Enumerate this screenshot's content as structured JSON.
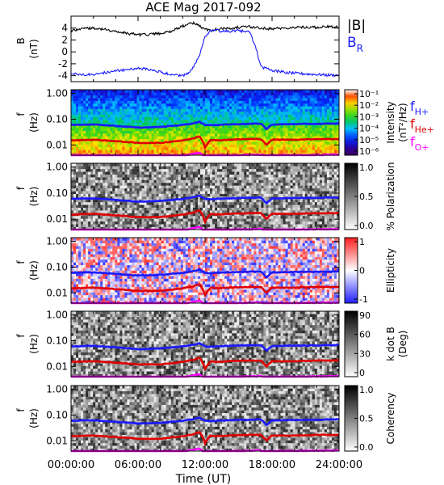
{
  "title": "ACE Mag 2017-092",
  "x_axis": {
    "label": "Time (UT)",
    "tick_labels": [
      "00:00:00",
      "06:00:00",
      "12:00:00",
      "18:00:00",
      "24:00:00"
    ],
    "range_hours": [
      0,
      24
    ]
  },
  "colors": {
    "black": "#000000",
    "blue": "#1a1aff",
    "red": "#e00000",
    "magenta": "#ff00ff"
  },
  "chart_data": [
    {
      "type": "line",
      "panel": "B-field",
      "ylabel": "B",
      "yunit": "(nT)",
      "ylim": [
        -5,
        6
      ],
      "y_tick_labels": [
        "4",
        "2",
        "0",
        "-2",
        "-4"
      ],
      "y_tick_values": [
        4,
        2,
        0,
        -2,
        -4
      ],
      "legend": [
        {
          "label": "|B|",
          "color": "#000000"
        },
        {
          "label": "B",
          "sub": "R",
          "color": "#1a1aff"
        }
      ],
      "series": [
        {
          "name": "|B|",
          "x": [
            0,
            1,
            2,
            3,
            4,
            5,
            6,
            7,
            8,
            9,
            10,
            10.5,
            11,
            11.5,
            12,
            12.5,
            13,
            14,
            15,
            16,
            17,
            18,
            19,
            20,
            21,
            22,
            23,
            24
          ],
          "y": [
            3.6,
            3.9,
            4.0,
            3.8,
            3.4,
            3.1,
            2.9,
            2.9,
            3.1,
            3.5,
            4.3,
            4.7,
            4.9,
            4.3,
            3.8,
            3.6,
            3.8,
            4.0,
            4.1,
            4.2,
            4.0,
            3.9,
            4.0,
            4.1,
            4.2,
            4.1,
            4.2,
            4.2
          ]
        },
        {
          "name": "BR",
          "x": [
            0,
            1,
            2,
            3,
            4,
            5,
            6,
            7,
            8,
            9,
            10,
            10.5,
            11,
            11.5,
            12,
            12.5,
            13,
            14,
            15,
            16,
            16.5,
            17,
            18,
            19,
            20,
            21,
            22,
            23,
            24
          ],
          "y": [
            -3.6,
            -3.9,
            -3.8,
            -3.5,
            -3.2,
            -3.0,
            -2.8,
            -2.9,
            -3.4,
            -3.8,
            -4.0,
            -3.5,
            -2.5,
            -0.5,
            2.5,
            3.5,
            3.6,
            3.4,
            3.6,
            3.3,
            1.0,
            -2.5,
            -3.1,
            -3.4,
            -3.6,
            -3.7,
            -3.8,
            -3.9,
            -3.9
          ]
        }
      ]
    },
    {
      "type": "heatmap",
      "panel": "Intensity",
      "ylabel": "f",
      "yunit": "(Hz)",
      "scale": "log",
      "ylim": [
        0.004,
        1.4
      ],
      "y_tick_labels": [
        "1.00",
        "0.10",
        "0.01"
      ],
      "y_tick_values": [
        1,
        0.1,
        0.01
      ],
      "colorbar_title": "Intensity",
      "colorbar_unit": "(nT²/Hz)",
      "colorbar_tick_labels": [
        "10⁻¹",
        "10⁻²",
        "10⁻³",
        "10⁻⁴",
        "10⁻⁵",
        "10⁻⁶"
      ],
      "colorbar_type": "rainbow",
      "legend": [
        {
          "label": "f",
          "sub": "H+",
          "color": "#1a1aff"
        },
        {
          "label": "f",
          "sub": "He+",
          "color": "#e00000"
        },
        {
          "label": "f",
          "sub": "O+",
          "color": "#ff00ff"
        }
      ]
    },
    {
      "type": "heatmap",
      "panel": "Polarization",
      "ylabel": "f",
      "yunit": "(Hz)",
      "scale": "log",
      "ylim": [
        0.004,
        1.4
      ],
      "y_tick_labels": [
        "1.00",
        "0.10",
        "0.01"
      ],
      "y_tick_values": [
        1,
        0.1,
        0.01
      ],
      "colorbar_title": "% Polarization",
      "colorbar_unit": "",
      "colorbar_tick_labels": [
        "1.0",
        "0.5",
        "0.0"
      ],
      "colorbar_type": "gray"
    },
    {
      "type": "heatmap",
      "panel": "Ellipticity",
      "ylabel": "f",
      "yunit": "(Hz)",
      "scale": "log",
      "ylim": [
        0.004,
        1.4
      ],
      "y_tick_labels": [
        "1.00",
        "0.10",
        "0.01"
      ],
      "y_tick_values": [
        1,
        0.1,
        0.01
      ],
      "colorbar_title": "Ellipticity",
      "colorbar_unit": "",
      "colorbar_tick_labels": [
        "1",
        "0",
        "-1"
      ],
      "colorbar_type": "diverging"
    },
    {
      "type": "heatmap",
      "panel": "k dot B",
      "ylabel": "f",
      "yunit": "(Hz)",
      "scale": "log",
      "ylim": [
        0.004,
        1.4
      ],
      "y_tick_labels": [
        "1.00",
        "0.10",
        "0.01"
      ],
      "y_tick_values": [
        1,
        0.1,
        0.01
      ],
      "colorbar_title": "k dot B",
      "colorbar_unit": "(Deg)",
      "colorbar_tick_labels": [
        "90",
        "60",
        "30",
        "0"
      ],
      "colorbar_type": "gray"
    },
    {
      "type": "heatmap",
      "panel": "Coherency",
      "ylabel": "f",
      "yunit": "(Hz)",
      "scale": "log",
      "ylim": [
        0.004,
        1.4
      ],
      "y_tick_labels": [
        "1.00",
        "0.10",
        "0.01"
      ],
      "y_tick_values": [
        1,
        0.1,
        0.01
      ],
      "colorbar_title": "Coherency",
      "colorbar_unit": "",
      "colorbar_tick_labels": [
        "1.0",
        "0.5",
        "0.0"
      ],
      "colorbar_type": "gray"
    }
  ],
  "gyrofrequency_lines": {
    "x": [
      0,
      2,
      4,
      6,
      8,
      10,
      11,
      11.5,
      12,
      12.5,
      13,
      14,
      16,
      17,
      17.5,
      18,
      20,
      22,
      24
    ],
    "fH": [
      0.06,
      0.063,
      0.055,
      0.047,
      0.05,
      0.06,
      0.07,
      0.08,
      0.06,
      0.058,
      0.06,
      0.063,
      0.066,
      0.068,
      0.04,
      0.062,
      0.065,
      0.066,
      0.068
    ],
    "fHe": [
      0.015,
      0.016,
      0.014,
      0.012,
      0.012,
      0.015,
      0.018,
      0.022,
      0.008,
      0.016,
      0.015,
      0.016,
      0.017,
      0.017,
      0.01,
      0.016,
      0.016,
      0.017,
      0.017
    ],
    "fO": [
      0.0037,
      0.0039,
      0.0035,
      0.003,
      0.0031,
      0.0037,
      0.0045,
      0.005,
      0.003,
      0.004,
      0.0038,
      0.0039,
      0.0041,
      0.0042,
      0.0032,
      0.004,
      0.004,
      0.0041,
      0.0042
    ]
  }
}
